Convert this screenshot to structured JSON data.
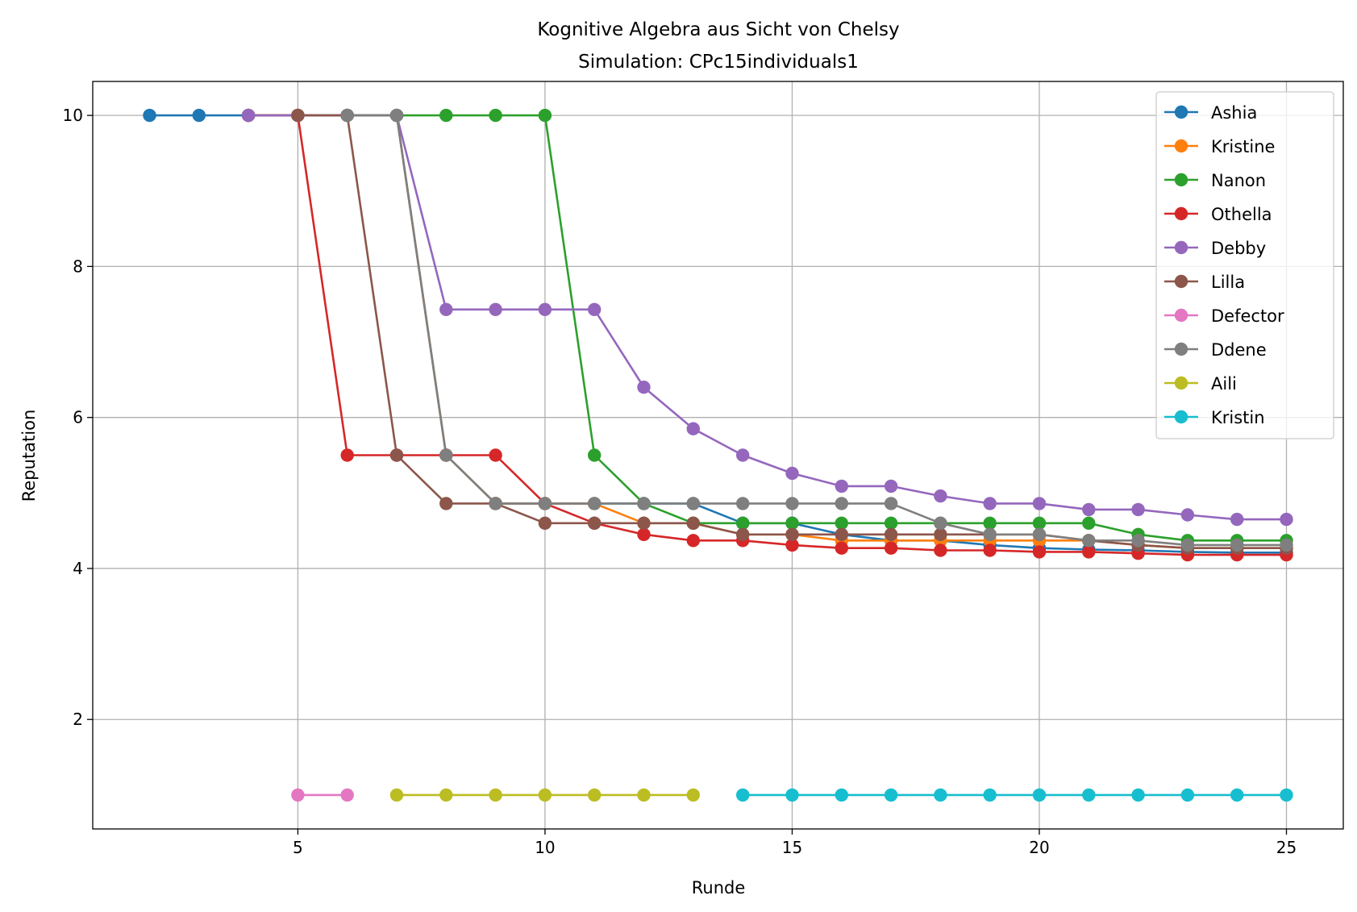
{
  "chart_data": {
    "type": "line",
    "title": "Kognitive Algebra aus Sicht von Chelsy",
    "subtitle": "Simulation: CPc15individuals1",
    "xlabel": "Runde",
    "ylabel": "Reputation",
    "xlim": [
      0.85,
      26.15
    ],
    "ylim": [
      0.55,
      10.45
    ],
    "xticks": [
      5,
      10,
      15,
      20,
      25
    ],
    "yticks": [
      2,
      4,
      6,
      8,
      10
    ],
    "grid": true,
    "legend_position": "upper right",
    "series": [
      {
        "name": "Ashia",
        "color": "#1f77b4",
        "x": [
          2,
          3,
          4,
          5,
          6,
          7,
          8,
          9,
          10,
          11,
          12,
          13,
          14,
          15,
          16,
          17,
          18,
          19,
          20,
          21,
          22,
          23,
          24,
          25
        ],
        "y": [
          10,
          10,
          10,
          10,
          10,
          10,
          5.5,
          4.86,
          4.86,
          4.86,
          4.86,
          4.86,
          4.6,
          4.6,
          4.45,
          4.37,
          4.37,
          4.31,
          4.27,
          4.25,
          4.24,
          4.22,
          4.21,
          4.21
        ]
      },
      {
        "name": "Kristine",
        "color": "#ff7f0e",
        "x": [
          4,
          5,
          6,
          7,
          8,
          9,
          10,
          11,
          12,
          13,
          14,
          15,
          16,
          17,
          18,
          19,
          20,
          21,
          22,
          23,
          24,
          25
        ],
        "y": [
          10,
          10,
          10,
          10,
          5.5,
          4.86,
          4.86,
          4.86,
          4.6,
          4.6,
          4.45,
          4.45,
          4.37,
          4.37,
          4.37,
          4.37,
          4.37,
          4.37,
          4.31,
          4.27,
          4.27,
          4.27
        ]
      },
      {
        "name": "Nanon",
        "color": "#2ca02c",
        "x": [
          4,
          5,
          6,
          7,
          8,
          9,
          10,
          11,
          12,
          13,
          14,
          15,
          16,
          17,
          18,
          19,
          20,
          21,
          22,
          23,
          24,
          25
        ],
        "y": [
          10,
          10,
          10,
          10,
          10,
          10,
          10,
          5.5,
          4.86,
          4.6,
          4.6,
          4.6,
          4.6,
          4.6,
          4.6,
          4.6,
          4.6,
          4.6,
          4.45,
          4.37,
          4.37,
          4.37
        ]
      },
      {
        "name": "Othella",
        "color": "#d62728",
        "x": [
          4,
          5,
          6,
          7,
          8,
          9,
          10,
          11,
          12,
          13,
          14,
          15,
          16,
          17,
          18,
          19,
          20,
          21,
          22,
          23,
          24,
          25
        ],
        "y": [
          10,
          10,
          5.5,
          5.5,
          5.5,
          5.5,
          4.86,
          4.6,
          4.45,
          4.37,
          4.37,
          4.31,
          4.27,
          4.27,
          4.24,
          4.24,
          4.22,
          4.22,
          4.2,
          4.18,
          4.18,
          4.18
        ]
      },
      {
        "name": "Debby",
        "color": "#9467bd",
        "x": [
          4,
          5,
          6,
          7,
          8,
          9,
          10,
          11,
          12,
          13,
          14,
          15,
          16,
          17,
          18,
          19,
          20,
          21,
          22,
          23,
          24,
          25
        ],
        "y": [
          10,
          10,
          10,
          10,
          7.43,
          7.43,
          7.43,
          7.43,
          6.4,
          5.85,
          5.5,
          5.26,
          5.09,
          5.09,
          4.96,
          4.86,
          4.86,
          4.78,
          4.78,
          4.71,
          4.65,
          4.65
        ]
      },
      {
        "name": "Lilla",
        "color": "#8c564b",
        "x": [
          5,
          6,
          7,
          8,
          9,
          10,
          11,
          12,
          13,
          14,
          15,
          16,
          17,
          18,
          19,
          20,
          21,
          22,
          23,
          24,
          25
        ],
        "y": [
          10,
          10,
          5.5,
          4.86,
          4.86,
          4.6,
          4.6,
          4.6,
          4.6,
          4.45,
          4.45,
          4.45,
          4.45,
          4.45,
          4.45,
          4.45,
          4.37,
          4.31,
          4.27,
          4.27,
          4.27
        ]
      },
      {
        "name": "Defector",
        "color": "#e377c2",
        "x": [
          5,
          6
        ],
        "y": [
          1,
          1
        ]
      },
      {
        "name": "Ddene",
        "color": "#7f7f7f",
        "x": [
          6,
          7,
          8,
          9,
          10,
          11,
          12,
          13,
          14,
          15,
          16,
          17,
          18,
          19,
          20,
          21,
          22,
          23,
          24,
          25
        ],
        "y": [
          10,
          10,
          5.5,
          4.86,
          4.86,
          4.86,
          4.86,
          4.86,
          4.86,
          4.86,
          4.86,
          4.86,
          4.6,
          4.45,
          4.45,
          4.37,
          4.37,
          4.31,
          4.31,
          4.31
        ]
      },
      {
        "name": "Aili",
        "color": "#bcbd22",
        "x": [
          7,
          8,
          9,
          10,
          11,
          12,
          13
        ],
        "y": [
          1,
          1,
          1,
          1,
          1,
          1,
          1
        ]
      },
      {
        "name": "Kristin",
        "color": "#17becf",
        "x": [
          14,
          15,
          16,
          17,
          18,
          19,
          20,
          21,
          22,
          23,
          24,
          25
        ],
        "y": [
          1,
          1,
          1,
          1,
          1,
          1,
          1,
          1,
          1,
          1,
          1,
          1
        ]
      }
    ]
  }
}
